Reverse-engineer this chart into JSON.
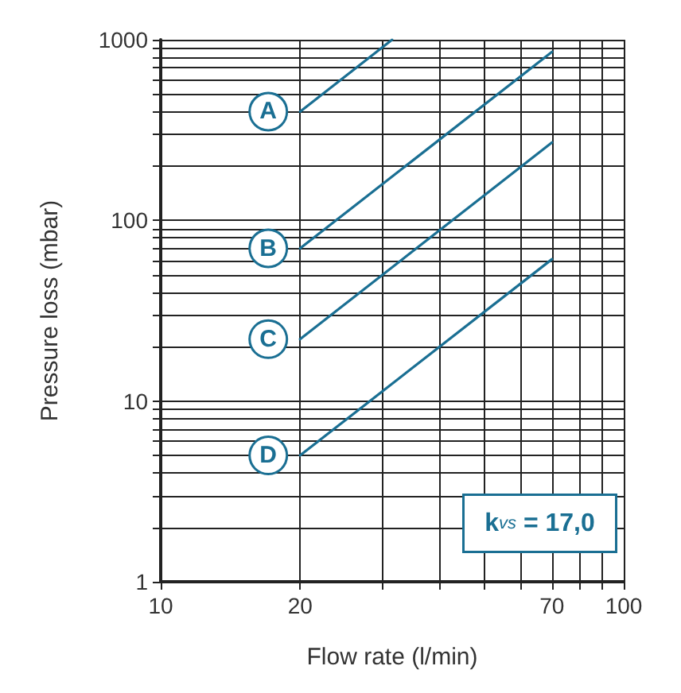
{
  "chart_data": {
    "type": "line",
    "xlabel": "Flow rate (l/min)",
    "ylabel": "Pressure loss (mbar)",
    "log": "xy",
    "xlim": [
      10,
      100
    ],
    "ylim": [
      1,
      1000
    ],
    "xticks": [
      10,
      20,
      {
        "value": 30,
        "label": null
      },
      {
        "value": 40,
        "label": null
      },
      {
        "value": 50,
        "label": null
      },
      {
        "value": 60,
        "label": null
      },
      70,
      {
        "value": 80,
        "label": null
      },
      {
        "value": 90,
        "label": null
      },
      100
    ],
    "yticks": [
      1,
      {
        "value": 2,
        "label": null
      },
      {
        "value": 3,
        "label": null
      },
      {
        "value": 4,
        "label": null
      },
      {
        "value": 5,
        "label": null
      },
      {
        "value": 6,
        "label": null
      },
      {
        "value": 7,
        "label": null
      },
      {
        "value": 8,
        "label": null
      },
      {
        "value": 9,
        "label": null
      },
      10,
      {
        "value": 20,
        "label": null
      },
      {
        "value": 30,
        "label": null
      },
      {
        "value": 40,
        "label": null
      },
      {
        "value": 50,
        "label": null
      },
      {
        "value": 60,
        "label": null
      },
      {
        "value": 70,
        "label": null
      },
      {
        "value": 80,
        "label": null
      },
      {
        "value": 90,
        "label": null
      },
      100,
      {
        "value": 200,
        "label": null
      },
      {
        "value": 300,
        "label": null
      },
      {
        "value": 400,
        "label": null
      },
      {
        "value": 500,
        "label": null
      },
      {
        "value": 600,
        "label": null
      },
      {
        "value": 700,
        "label": null
      },
      {
        "value": 800,
        "label": null
      },
      {
        "value": 900,
        "label": null
      },
      1000
    ],
    "grid": true,
    "legend": false,
    "marker": "none",
    "line_style": "solid",
    "series": [
      {
        "name": "A",
        "color": "#1a6f93",
        "x": [
          20,
          31.6
        ],
        "values": [
          400,
          1000
        ]
      },
      {
        "name": "B",
        "color": "#1a6f93",
        "x": [
          20,
          70
        ],
        "values": [
          70,
          857
        ]
      },
      {
        "name": "C",
        "color": "#1a6f93",
        "x": [
          20,
          70
        ],
        "values": [
          22,
          270
        ]
      },
      {
        "name": "D",
        "color": "#1a6f93",
        "x": [
          20,
          70
        ],
        "values": [
          5,
          61
        ]
      }
    ],
    "annotations": [
      "k$_{vs}$ = 17,0"
    ]
  }
}
